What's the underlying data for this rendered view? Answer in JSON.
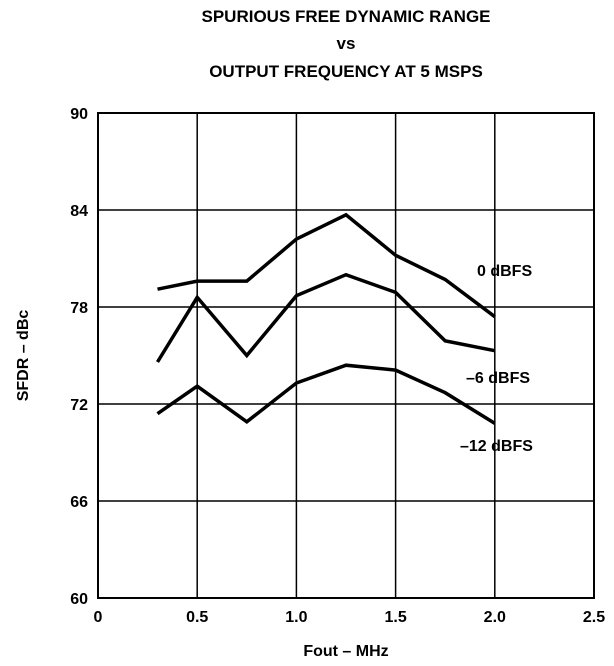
{
  "chart_data": {
    "type": "line",
    "title": [
      "SPURIOUS FREE DYNAMIC RANGE",
      "vs",
      "OUTPUT FREQUENCY AT 5 MSPS"
    ],
    "xlabel": "Fout – MHz",
    "ylabel": "SFDR – dBc",
    "xlim": [
      0,
      2.5
    ],
    "ylim": [
      60,
      90
    ],
    "xticks": [
      0,
      0.5,
      1.0,
      1.5,
      2.0,
      2.5
    ],
    "xtick_labels": [
      "0",
      "0.5",
      "1.0",
      "1.5",
      "2.0",
      "2.5"
    ],
    "yticks": [
      60,
      66,
      72,
      78,
      84,
      90
    ],
    "ytick_labels": [
      "60",
      "66",
      "72",
      "78",
      "84",
      "90"
    ],
    "grid": true,
    "line_color": "#000000",
    "series": [
      {
        "name": "0 dBFS",
        "x": [
          0.3,
          0.5,
          0.75,
          1.0,
          1.25,
          1.5,
          1.75,
          2.0
        ],
        "y": [
          79.1,
          79.6,
          79.6,
          82.2,
          83.7,
          81.2,
          79.7,
          77.4
        ]
      },
      {
        "name": "–6 dBFS",
        "x": [
          0.3,
          0.5,
          0.75,
          1.0,
          1.25,
          1.5,
          1.75,
          2.0
        ],
        "y": [
          74.6,
          78.6,
          75.0,
          78.7,
          80.0,
          78.9,
          75.9,
          75.3
        ]
      },
      {
        "name": "–12 dBFS",
        "x": [
          0.3,
          0.5,
          0.75,
          1.0,
          1.25,
          1.5,
          1.75,
          2.0
        ],
        "y": [
          71.4,
          73.1,
          70.9,
          73.3,
          74.4,
          74.1,
          72.7,
          70.8
        ]
      }
    ]
  }
}
